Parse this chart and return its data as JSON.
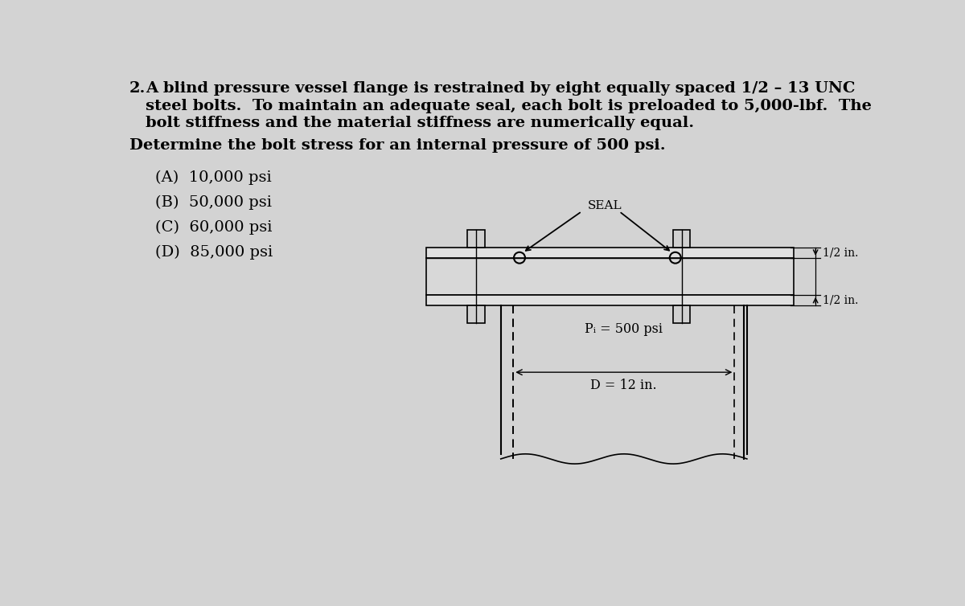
{
  "bg_color": "#d3d3d3",
  "text_color": "#000000",
  "title_num": "2.",
  "title_line1": "A blind pressure vessel flange is restrained by eight equally spaced 1/2 – 13 UNC",
  "title_line2": "steel bolts.  To maintain an adequate seal, each bolt is preloaded to 5,000-lbf.  The",
  "title_line3": "bolt stiffness and the material stiffness are numerically equal.",
  "subtitle": "Determine the bolt stress for an internal pressure of 500 psi.",
  "options": [
    "(A)  10,000 psi",
    "(B)  50,000 psi",
    "(C)  60,000 psi",
    "(D)  85,000 psi"
  ],
  "seal_label": "SEAL",
  "pressure_label": "Pᵢ = 500 psi",
  "diameter_label": "D = 12 in.",
  "dim1_label": "1/2 in.",
  "dim2_label": "1/2 in.",
  "flange_body_color": "#d8d8d8",
  "flange_plate_color": "#e0e0e0",
  "bolt_color": "#d0d0d0"
}
